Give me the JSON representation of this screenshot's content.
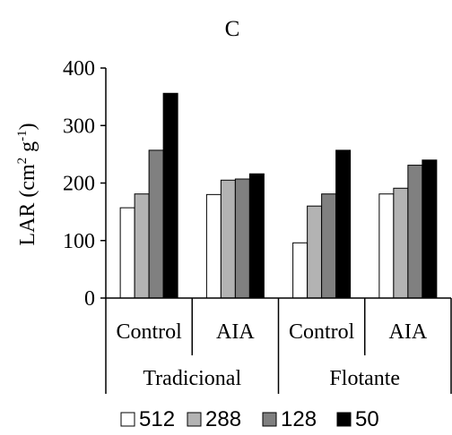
{
  "chart_data": {
    "type": "bar",
    "title": "C",
    "ylabel": {
      "base": "LAR (cm",
      "sup1": "2",
      "mid": " g",
      "sup2": "-1",
      "end": ")"
    },
    "ylim": [
      0,
      400
    ],
    "yticks": [
      0,
      100,
      200,
      300,
      400
    ],
    "grid": false,
    "legend_position": "bottom",
    "groups": [
      {
        "name": "Tradicional",
        "categories": [
          "Control",
          "AIA"
        ]
      },
      {
        "name": "Flotante",
        "categories": [
          "Control",
          "AIA"
        ]
      }
    ],
    "categories": [
      "Control",
      "AIA",
      "Control",
      "AIA"
    ],
    "series": [
      {
        "name": "512",
        "color": "#ffffff",
        "values": [
          157,
          180,
          96,
          181
        ]
      },
      {
        "name": "288",
        "color": "#b3b3b3",
        "values": [
          181,
          205,
          160,
          191
        ]
      },
      {
        "name": "128",
        "color": "#808080",
        "values": [
          257,
          207,
          181,
          231
        ]
      },
      {
        "name": "50",
        "color": "#000000",
        "values": [
          356,
          216,
          257,
          240
        ]
      }
    ]
  }
}
